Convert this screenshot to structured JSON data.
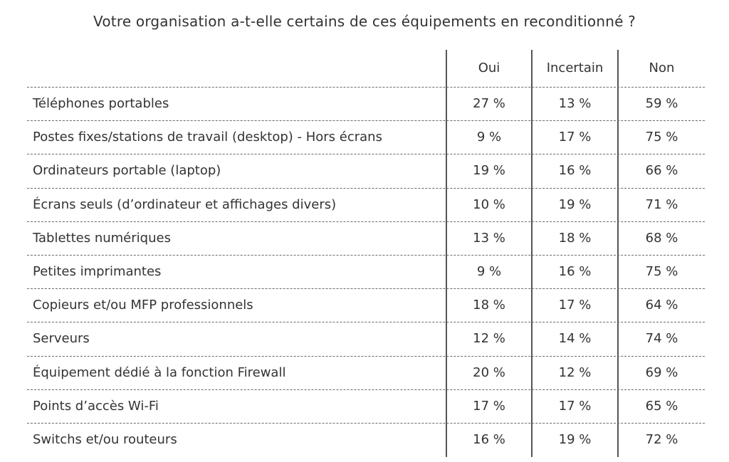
{
  "chart_data": {
    "type": "table",
    "title": "Votre organisation a-t-elle certains de ces équipements en reconditionné ?",
    "columns": [
      "Oui",
      "Incertain",
      "Non"
    ],
    "rows": [
      {
        "label": "Téléphones portables",
        "values": [
          "27 %",
          "13 %",
          "59 %"
        ]
      },
      {
        "label": "Postes fixes/stations de travail (desktop) - Hors écrans",
        "values": [
          "9 %",
          "17 %",
          "75 %"
        ]
      },
      {
        "label": "Ordinateurs portable (laptop)",
        "values": [
          "19 %",
          "16 %",
          "66 %"
        ]
      },
      {
        "label": "Écrans seuls (d’ordinateur et affichages divers)",
        "values": [
          "10 %",
          "19 %",
          "71 %"
        ]
      },
      {
        "label": "Tablettes numériques",
        "values": [
          "13 %",
          "18 %",
          "68 %"
        ]
      },
      {
        "label": "Petites imprimantes",
        "values": [
          "9 %",
          "16 %",
          "75 %"
        ]
      },
      {
        "label": "Copieurs et/ou MFP professionnels",
        "values": [
          "18 %",
          "17 %",
          "64 %"
        ]
      },
      {
        "label": "Serveurs",
        "values": [
          "12 %",
          "14 %",
          "74 %"
        ]
      },
      {
        "label": "Équipement dédié à la fonction Firewall",
        "values": [
          "20 %",
          "12 %",
          "69 %"
        ]
      },
      {
        "label": "Points d’accès Wi-Fi",
        "values": [
          "17 %",
          "17 %",
          "65 %"
        ]
      },
      {
        "label": "Switchs et/ou routeurs",
        "values": [
          "16 %",
          "19 %",
          "72 %"
        ]
      }
    ]
  }
}
